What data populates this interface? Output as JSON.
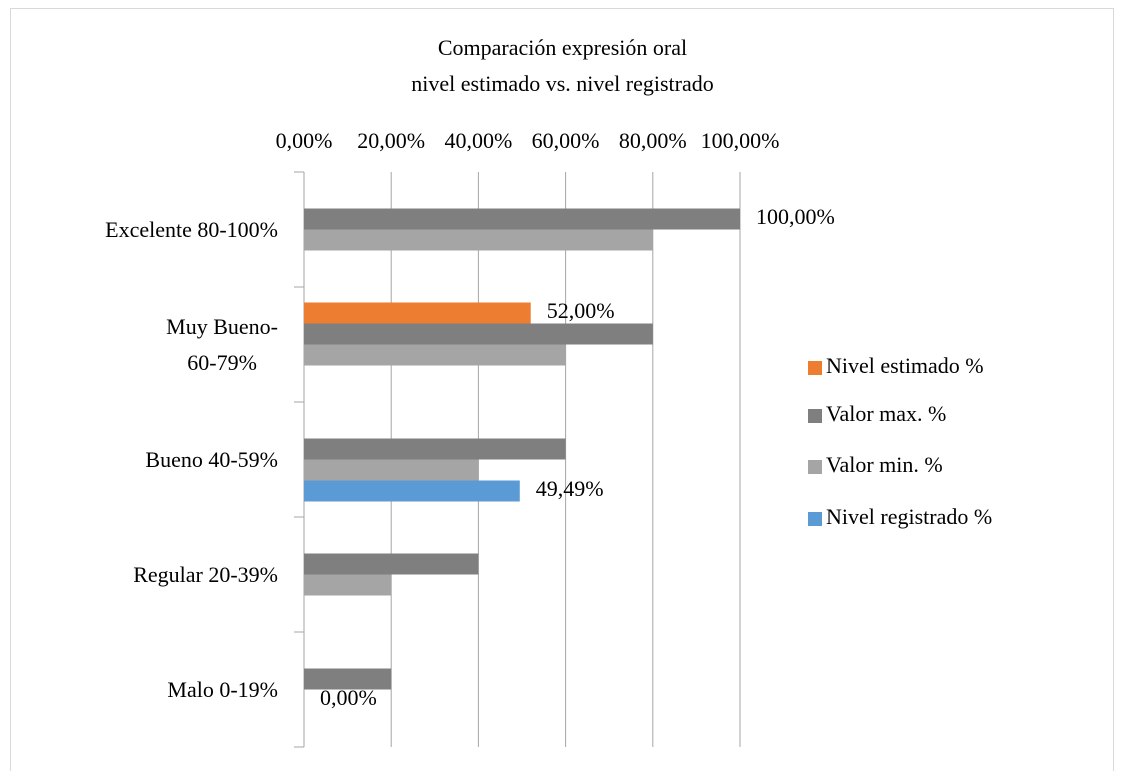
{
  "chart_data": {
    "type": "hbar",
    "title": "Comparación expresión oral\nnivel estimado vs. nivel registrado",
    "categories": [
      "Excelente 80-100%",
      "Muy Bueno-\n60-79%",
      "Bueno 40-59%",
      "Regular 20-39%",
      "Malo 0-19%"
    ],
    "series": [
      {
        "name": "Nivel estimado %",
        "color": "#ed7d31",
        "values": [
          null,
          52,
          null,
          null,
          null
        ],
        "value_labels": [
          null,
          "52,00%",
          null,
          null,
          null
        ]
      },
      {
        "name": "Valor max. %",
        "color": "#7f7f7f",
        "values": [
          100,
          80,
          60,
          40,
          20
        ],
        "value_labels": [
          "100,00%",
          null,
          null,
          null,
          null
        ]
      },
      {
        "name": "Valor min. %",
        "color": "#a5a5a5",
        "values": [
          80,
          60,
          40,
          20,
          0
        ],
        "value_labels": [
          null,
          null,
          null,
          null,
          "0,00%"
        ]
      },
      {
        "name": "Nivel registrado %",
        "color": "#5b9bd5",
        "values": [
          null,
          null,
          49.49,
          null,
          null
        ],
        "value_labels": [
          null,
          null,
          "49,49%",
          null,
          null
        ]
      }
    ],
    "xlim": [
      0,
      100
    ],
    "xticks": [
      {
        "value": 0,
        "label": "0,00%"
      },
      {
        "value": 20,
        "label": "20,00%"
      },
      {
        "value": 40,
        "label": "40,00%"
      },
      {
        "value": 60,
        "label": "60,00%"
      },
      {
        "value": 80,
        "label": "80,00%"
      },
      {
        "value": 100,
        "label": "100,00%"
      }
    ],
    "grid": true,
    "legend": "right"
  }
}
